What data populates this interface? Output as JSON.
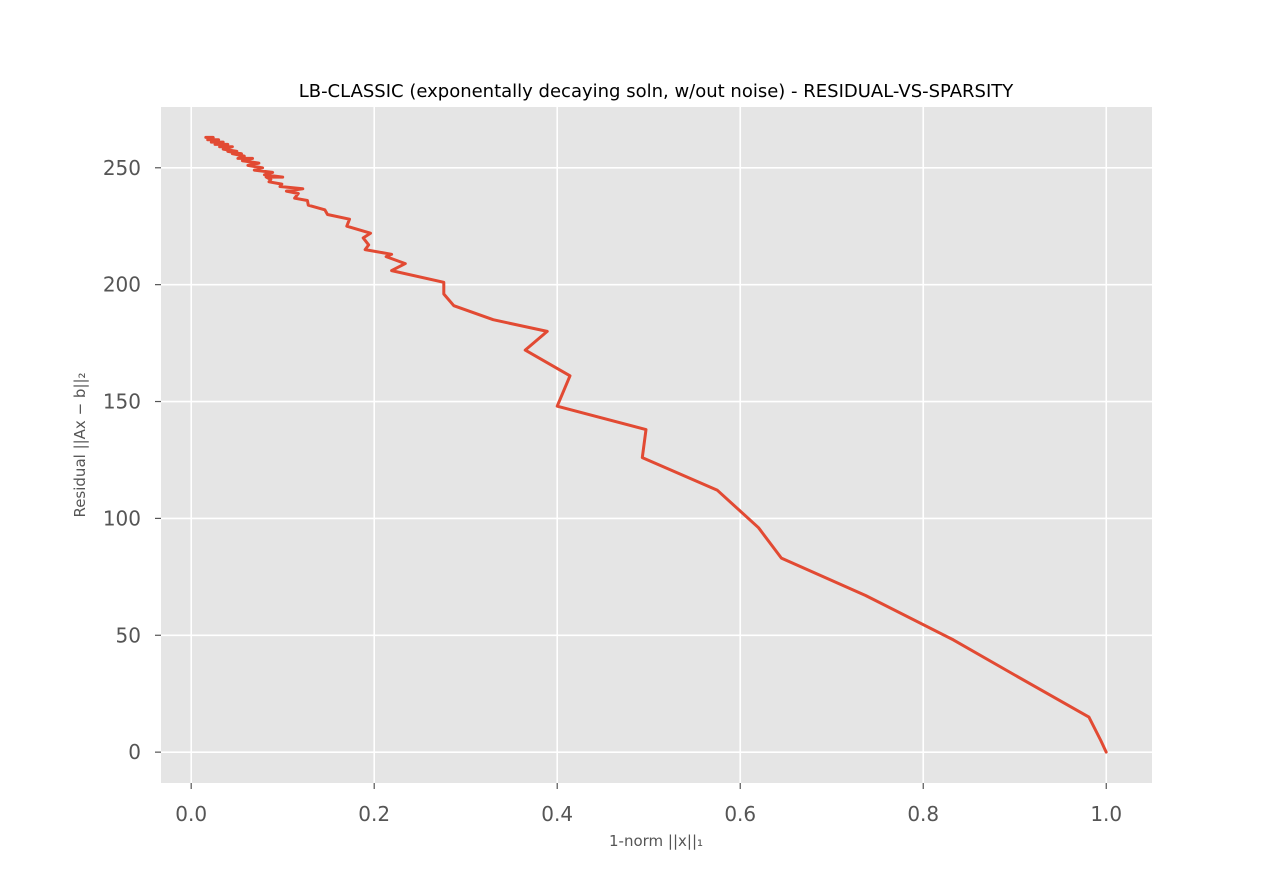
{
  "chart_data": {
    "type": "line",
    "title": "LB-CLASSIC (exponentally decaying soln, w/out noise) - RESIDUAL-VS-SPARSITY",
    "xlabel": "1-norm ||x||₁",
    "ylabel": "Residual ||Ax − b||₂",
    "xlim": [
      -0.033,
      1.05
    ],
    "ylim": [
      -13.2,
      276
    ],
    "xticks": [
      0.0,
      0.2,
      0.4,
      0.6,
      0.8,
      1.0
    ],
    "xtick_labels": [
      "0.0",
      "0.2",
      "0.4",
      "0.6",
      "0.8",
      "1.0"
    ],
    "yticks": [
      0,
      50,
      100,
      150,
      200,
      250
    ],
    "ytick_labels": [
      "0",
      "50",
      "100",
      "150",
      "200",
      "250"
    ],
    "grid": true,
    "series": [
      {
        "color": "#e24a33",
        "x": [
          1.0,
          0.994,
          0.981,
          0.9,
          0.833,
          0.737,
          0.645,
          0.62,
          0.575,
          0.493,
          0.497,
          0.4,
          0.414,
          0.365,
          0.389,
          0.33,
          0.287,
          0.276,
          0.276,
          0.219,
          0.234,
          0.213,
          0.219,
          0.19,
          0.194,
          0.188,
          0.196,
          0.17,
          0.173,
          0.149,
          0.146,
          0.128,
          0.127,
          0.113,
          0.117,
          0.104,
          0.122,
          0.097,
          0.099,
          0.085,
          0.087,
          0.082,
          0.1,
          0.08,
          0.089,
          0.069,
          0.078,
          0.062,
          0.074,
          0.056,
          0.067,
          0.051,
          0.058,
          0.045,
          0.055,
          0.04,
          0.05,
          0.035,
          0.045,
          0.031,
          0.04,
          0.026,
          0.035,
          0.022,
          0.03,
          0.018,
          0.024,
          0.016,
          0.018
        ],
        "y": [
          0,
          5,
          15,
          33,
          48,
          67,
          83,
          96,
          112,
          126,
          138,
          148,
          161,
          172,
          180,
          185,
          191,
          196,
          201,
          206,
          209,
          212,
          213,
          215,
          217,
          220,
          222,
          225,
          228,
          230,
          232,
          234,
          236,
          237,
          239,
          240,
          241,
          242,
          243,
          244,
          245,
          246,
          246,
          247,
          248,
          249,
          250,
          251,
          252,
          253,
          254,
          254,
          255,
          256,
          256,
          257,
          257,
          258,
          259,
          259,
          260,
          260,
          261,
          261,
          262,
          262,
          263,
          263,
          263
        ]
      }
    ]
  }
}
